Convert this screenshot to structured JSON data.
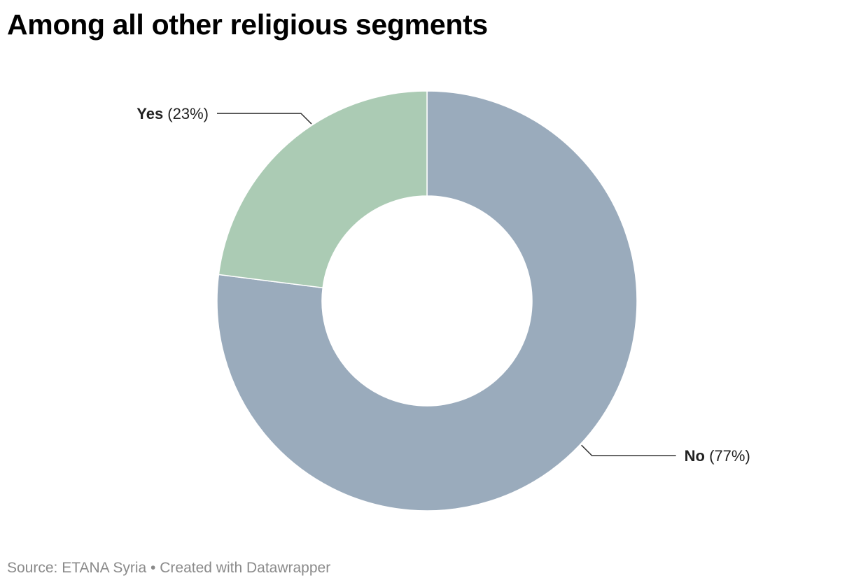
{
  "header": {
    "title": "Among all other religious segments"
  },
  "footer": {
    "source_label": "Source:",
    "source_name": "ETANA Syria",
    "separator": "•",
    "credit": "Created with Datawrapper"
  },
  "chart_data": {
    "type": "pie",
    "variant": "donut",
    "title": "Among all other religious segments",
    "categories": [
      "No",
      "Yes"
    ],
    "values": [
      77,
      23
    ],
    "value_labels": [
      "(77%)",
      "(23%)"
    ],
    "colors": [
      "#9aabbc",
      "#abcbb4"
    ],
    "slice_border_color": "#ffffff",
    "leader_line_color": "#333333",
    "legend": "none",
    "labels_outside": true
  }
}
